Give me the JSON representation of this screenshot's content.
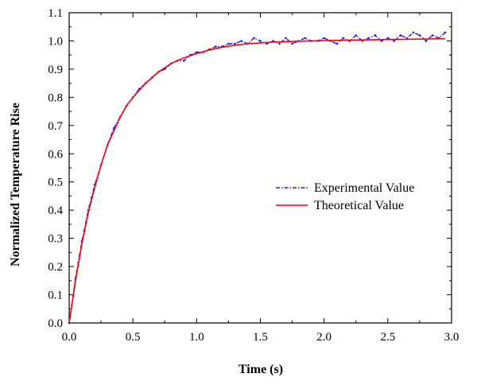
{
  "chart_data": {
    "type": "line",
    "title": "",
    "xlabel": "Time (s)",
    "ylabel": "Normalized Temperature Rise",
    "xlim": [
      0.0,
      3.0
    ],
    "ylim": [
      0.0,
      1.1
    ],
    "xticks": [
      0.0,
      0.5,
      1.0,
      1.5,
      2.0,
      2.5,
      3.0
    ],
    "xtick_labels": [
      "0.0",
      "0.5",
      "1.0",
      "1.5",
      "2.0",
      "2.5",
      "3.0"
    ],
    "yticks": [
      0.0,
      0.1,
      0.2,
      0.3,
      0.4,
      0.5,
      0.6,
      0.7,
      0.8,
      0.9,
      1.0,
      1.1
    ],
    "ytick_labels": [
      "0.0",
      "0.1",
      "0.2",
      "0.3",
      "0.4",
      "0.5",
      "0.6",
      "0.7",
      "0.8",
      "0.9",
      "1.0",
      "1.1"
    ],
    "grid": false,
    "legend_position": "center-right",
    "series": [
      {
        "name": "Experimental Value",
        "style": "dash-dot",
        "color": "#1a1aff",
        "x": [
          0.0,
          0.05,
          0.1,
          0.15,
          0.2,
          0.25,
          0.3,
          0.35,
          0.4,
          0.45,
          0.5,
          0.55,
          0.6,
          0.65,
          0.7,
          0.75,
          0.8,
          0.85,
          0.9,
          0.95,
          1.0,
          1.05,
          1.1,
          1.15,
          1.2,
          1.25,
          1.3,
          1.35,
          1.4,
          1.45,
          1.5,
          1.55,
          1.6,
          1.65,
          1.7,
          1.75,
          1.8,
          1.85,
          1.9,
          1.95,
          2.0,
          2.05,
          2.1,
          2.15,
          2.2,
          2.25,
          2.3,
          2.35,
          2.4,
          2.45,
          2.5,
          2.55,
          2.6,
          2.65,
          2.7,
          2.75,
          2.8,
          2.85,
          2.9,
          2.95
        ],
        "y": [
          0.0,
          0.16,
          0.29,
          0.4,
          0.49,
          0.56,
          0.63,
          0.69,
          0.73,
          0.77,
          0.8,
          0.83,
          0.85,
          0.87,
          0.89,
          0.9,
          0.92,
          0.93,
          0.93,
          0.95,
          0.96,
          0.96,
          0.97,
          0.98,
          0.98,
          0.99,
          0.99,
          1.0,
          0.99,
          1.01,
          1.0,
          0.99,
          1.0,
          0.99,
          1.01,
          0.99,
          1.0,
          1.01,
          1.0,
          1.0,
          1.01,
          1.0,
          0.99,
          1.01,
          1.0,
          1.02,
          1.0,
          1.01,
          1.02,
          1.0,
          1.01,
          1.0,
          1.02,
          1.01,
          1.03,
          1.02,
          1.0,
          1.02,
          1.01,
          1.03
        ]
      },
      {
        "name": "Theoretical Value",
        "style": "solid",
        "color": "#ff0000",
        "x": [
          0.0,
          0.05,
          0.1,
          0.15,
          0.2,
          0.25,
          0.3,
          0.35,
          0.4,
          0.45,
          0.5,
          0.6,
          0.7,
          0.8,
          0.9,
          1.0,
          1.1,
          1.2,
          1.3,
          1.4,
          1.5,
          1.6,
          1.8,
          2.0,
          2.2,
          2.5,
          2.8,
          2.95
        ],
        "y": [
          0.0,
          0.15,
          0.28,
          0.39,
          0.48,
          0.56,
          0.63,
          0.68,
          0.73,
          0.77,
          0.8,
          0.85,
          0.89,
          0.92,
          0.94,
          0.955,
          0.968,
          0.978,
          0.985,
          0.99,
          0.993,
          0.996,
          0.999,
          1.001,
          1.003,
          1.005,
          1.007,
          1.008
        ]
      }
    ]
  }
}
